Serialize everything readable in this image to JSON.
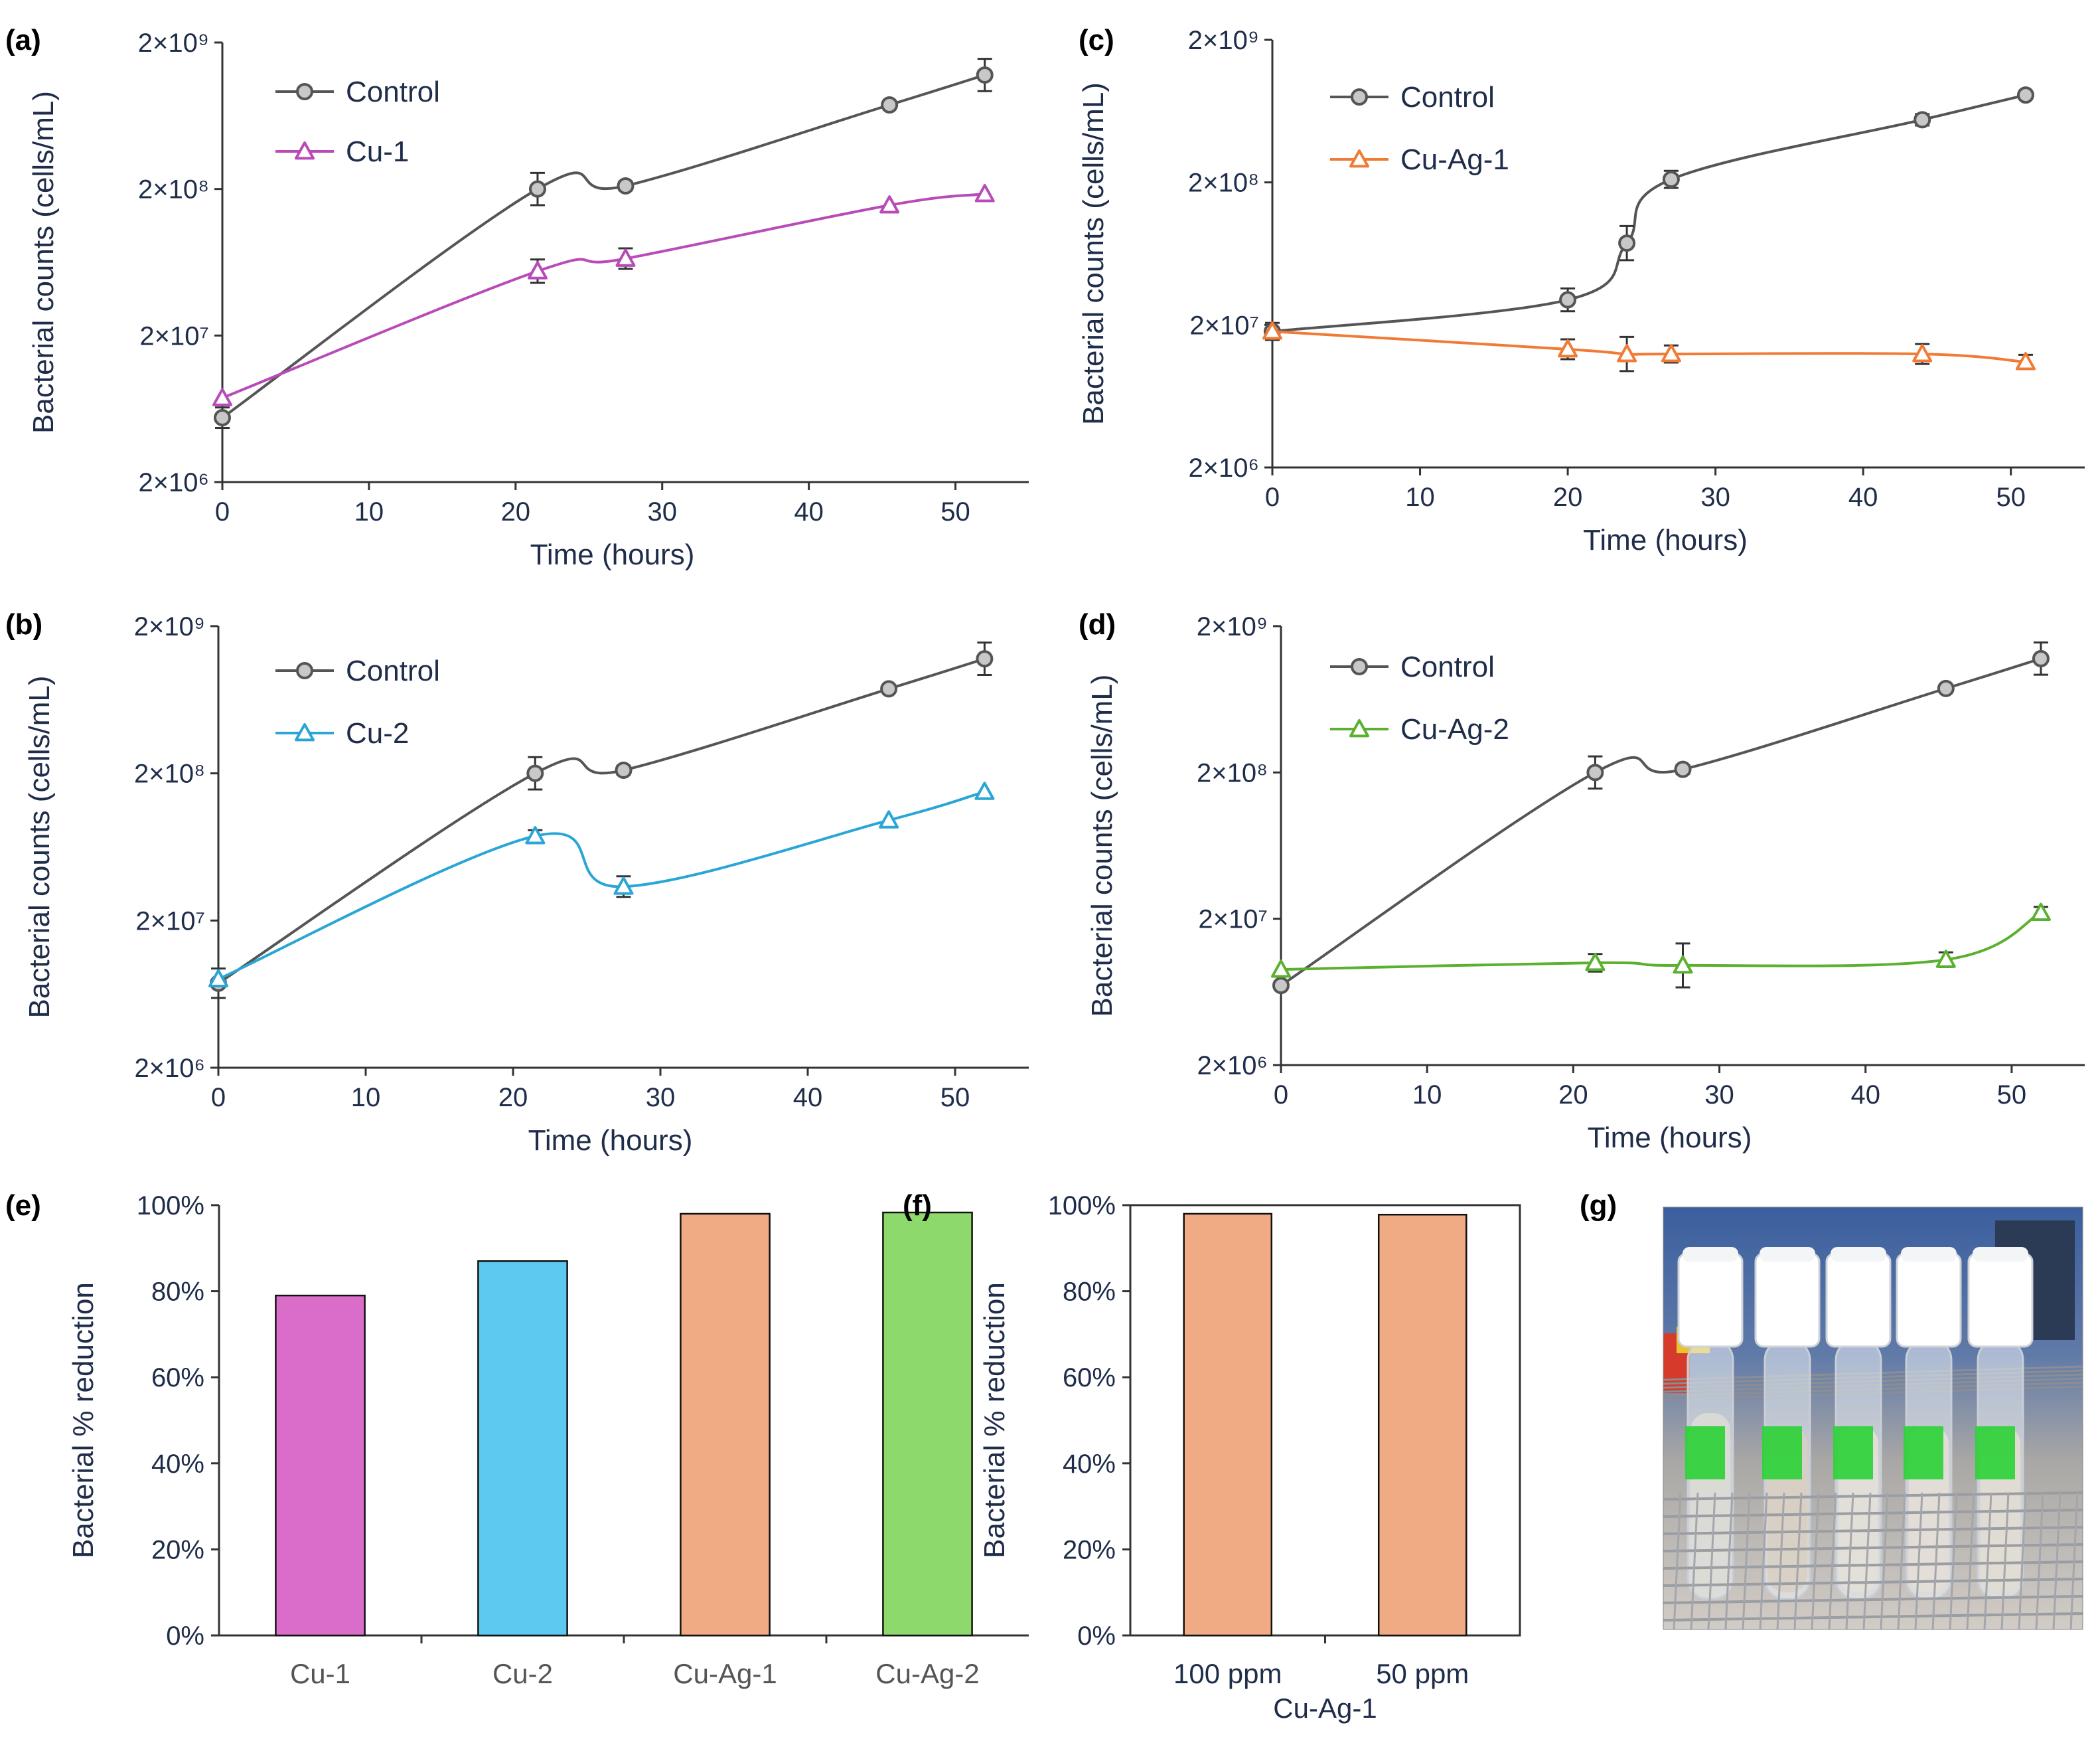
{
  "panels": [
    {
      "id": "a",
      "label": "(a)",
      "type": "line",
      "xlabel": "Time (hours)",
      "ylabel": "Bacterial counts (cells/mL)",
      "xlim": [
        0,
        55
      ],
      "xticks": [
        0,
        10,
        20,
        30,
        40,
        50
      ],
      "ylim": [
        2000000,
        2000000000
      ],
      "yticks": [
        2000000,
        20000000,
        200000000,
        2000000000
      ],
      "ytick_labels": [
        "2×10⁶",
        "2×10⁷",
        "2×10⁸",
        "2×10⁹"
      ],
      "series": [
        {
          "name": "Control",
          "marker": "circle",
          "color": "#555555",
          "fill": "#c8c8c8",
          "x": [
            0,
            21.5,
            27.5,
            45.5,
            52
          ],
          "y": [
            5500000,
            200000000,
            210000000,
            750000000,
            1200000000
          ],
          "err": [
            0.07,
            0.11,
            0.03,
            0,
            0.11
          ]
        },
        {
          "name": "Cu-1",
          "marker": "triangle",
          "color": "#b84bb8",
          "fill": "#ffffff",
          "x": [
            0,
            21.5,
            27.5,
            45.5,
            52
          ],
          "y": [
            7500000,
            55000000,
            67000000,
            155000000,
            185000000
          ],
          "err": [
            0,
            0.08,
            0.07,
            0,
            0
          ]
        }
      ]
    },
    {
      "id": "b",
      "label": "(b)",
      "type": "line",
      "xlabel": "Time (hours)",
      "ylabel": "Bacterial counts (cells/mL)",
      "xlim": [
        0,
        55
      ],
      "xticks": [
        0,
        10,
        20,
        30,
        40,
        50
      ],
      "ylim": [
        2000000,
        2000000000
      ],
      "yticks": [
        2000000,
        20000000,
        200000000,
        2000000000
      ],
      "ytick_labels": [
        "2×10⁶",
        "2×10⁷",
        "2×10⁸",
        "2×10⁹"
      ],
      "series": [
        {
          "name": "Control",
          "marker": "circle",
          "color": "#555555",
          "fill": "#c8c8c8",
          "x": [
            0,
            21.5,
            27.5,
            45.5,
            52
          ],
          "y": [
            7500000,
            200000000,
            210000000,
            750000000,
            1200000000
          ],
          "err": [
            0.1,
            0.11,
            0.03,
            0,
            0.11
          ]
        },
        {
          "name": "Cu-2",
          "marker": "triangle",
          "color": "#2aa6d6",
          "fill": "#ffffff",
          "x": [
            0,
            21.5,
            27.5,
            45.5,
            52
          ],
          "y": [
            8000000,
            75000000,
            34000000,
            96000000,
            150000000
          ],
          "err": [
            0,
            0.04,
            0.07,
            0,
            0
          ]
        }
      ]
    },
    {
      "id": "c",
      "label": "(c)",
      "type": "line",
      "xlabel": "Time (hours)",
      "ylabel": "Bacterial counts (cells/mL)",
      "xlim": [
        0,
        55
      ],
      "xticks": [
        0,
        10,
        20,
        30,
        40,
        50
      ],
      "ylim": [
        2000000,
        2000000000
      ],
      "yticks": [
        2000000,
        20000000,
        200000000,
        2000000000
      ],
      "ytick_labels": [
        "2×10⁶",
        "2×10⁷",
        "2×10⁸",
        "2×10⁹"
      ],
      "series": [
        {
          "name": "Control",
          "marker": "circle",
          "color": "#555555",
          "fill": "#c8c8c8",
          "x": [
            0,
            20,
            24,
            27,
            44,
            51
          ],
          "y": [
            18000000,
            30000000,
            75000000,
            210000000,
            550000000,
            820000000
          ],
          "err": [
            0.06,
            0.08,
            0.12,
            0.06,
            0.04,
            0
          ]
        },
        {
          "name": "Cu-Ag-1",
          "marker": "triangle",
          "color": "#f07b35",
          "fill": "#ffffff",
          "x": [
            0,
            20,
            24,
            27,
            44,
            51
          ],
          "y": [
            18000000,
            13500000,
            12500000,
            12500000,
            12500000,
            11000000
          ],
          "err": [
            0,
            0.07,
            0.12,
            0.06,
            0.07,
            0.05
          ]
        }
      ]
    },
    {
      "id": "d",
      "label": "(d)",
      "type": "line",
      "xlabel": "Time (hours)",
      "ylabel": "Bacterial counts (cells/mL)",
      "xlim": [
        0,
        55
      ],
      "xticks": [
        0,
        10,
        20,
        30,
        40,
        50
      ],
      "ylim": [
        2000000,
        2000000000
      ],
      "yticks": [
        2000000,
        20000000,
        200000000,
        2000000000
      ],
      "ytick_labels": [
        "2×10⁶",
        "2×10⁷",
        "2×10⁸",
        "2×10⁹"
      ],
      "series": [
        {
          "name": "Control",
          "marker": "circle",
          "color": "#555555",
          "fill": "#c8c8c8",
          "x": [
            0,
            21.5,
            27.5,
            45.5,
            52
          ],
          "y": [
            7000000,
            200000000,
            210000000,
            750000000,
            1200000000
          ],
          "err": [
            0,
            0.11,
            0.03,
            0,
            0.11
          ]
        },
        {
          "name": "Cu-Ag-2",
          "marker": "triangle",
          "color": "#5cb030",
          "fill": "#ffffff",
          "x": [
            0,
            21.5,
            27.5,
            45.5,
            52
          ],
          "y": [
            9000000,
            10000000,
            9600000,
            10500000,
            22000000
          ],
          "err": [
            0,
            0.06,
            0.15,
            0.05,
            0.04
          ]
        }
      ]
    },
    {
      "id": "e",
      "label": "(e)",
      "type": "bar",
      "ylabel": "Bacterial % reduction",
      "xlabel": "",
      "ylim": [
        0,
        100
      ],
      "yticks": [
        0,
        20,
        40,
        60,
        80,
        100
      ],
      "ytick_labels": [
        "0%",
        "20%",
        "40%",
        "60%",
        "80%",
        "100%"
      ],
      "categories": [
        "Cu-1",
        "Cu-2",
        "Cu-Ag-1",
        "Cu-Ag-2"
      ],
      "values": [
        79,
        87,
        98,
        98.3
      ],
      "colors": [
        "#d96dc9",
        "#5ec9f0",
        "#f0aa84",
        "#8dd96c"
      ]
    },
    {
      "id": "f",
      "label": "(f)",
      "type": "bar",
      "ylabel": "Bacterial % reduction",
      "xlabel": "Cu-Ag-1",
      "ylim": [
        0,
        100
      ],
      "yticks": [
        0,
        20,
        40,
        60,
        80,
        100
      ],
      "ytick_labels": [
        "0%",
        "20%",
        "40%",
        "60%",
        "80%",
        "100%"
      ],
      "categories": [
        "100 ppm",
        "50 ppm"
      ],
      "values": [
        98,
        97.8
      ],
      "colors": [
        "#f0aa84",
        "#f0aa84"
      ]
    }
  ],
  "photo": {
    "label": "(g)",
    "tubes": [
      {
        "cap": "#ffffff",
        "tag": "#2fd13a",
        "liquid": "#dcdcd6"
      },
      {
        "cap": "#ffffff",
        "tag": "#2fd13a",
        "liquid": "#d8cfc2"
      },
      {
        "cap": "#ffffff",
        "tag": "#2fd13a",
        "liquid": "#e3e0d8"
      },
      {
        "cap": "#ffffff",
        "tag": "#2fd13a",
        "liquid": "#e3ded6"
      },
      {
        "cap": "#ffffff",
        "tag": "#2fd13a",
        "liquid": "#e2ddd3"
      }
    ]
  },
  "colors": {
    "axis": "#333333",
    "text": "#1f2d4a",
    "error": "#333333"
  }
}
